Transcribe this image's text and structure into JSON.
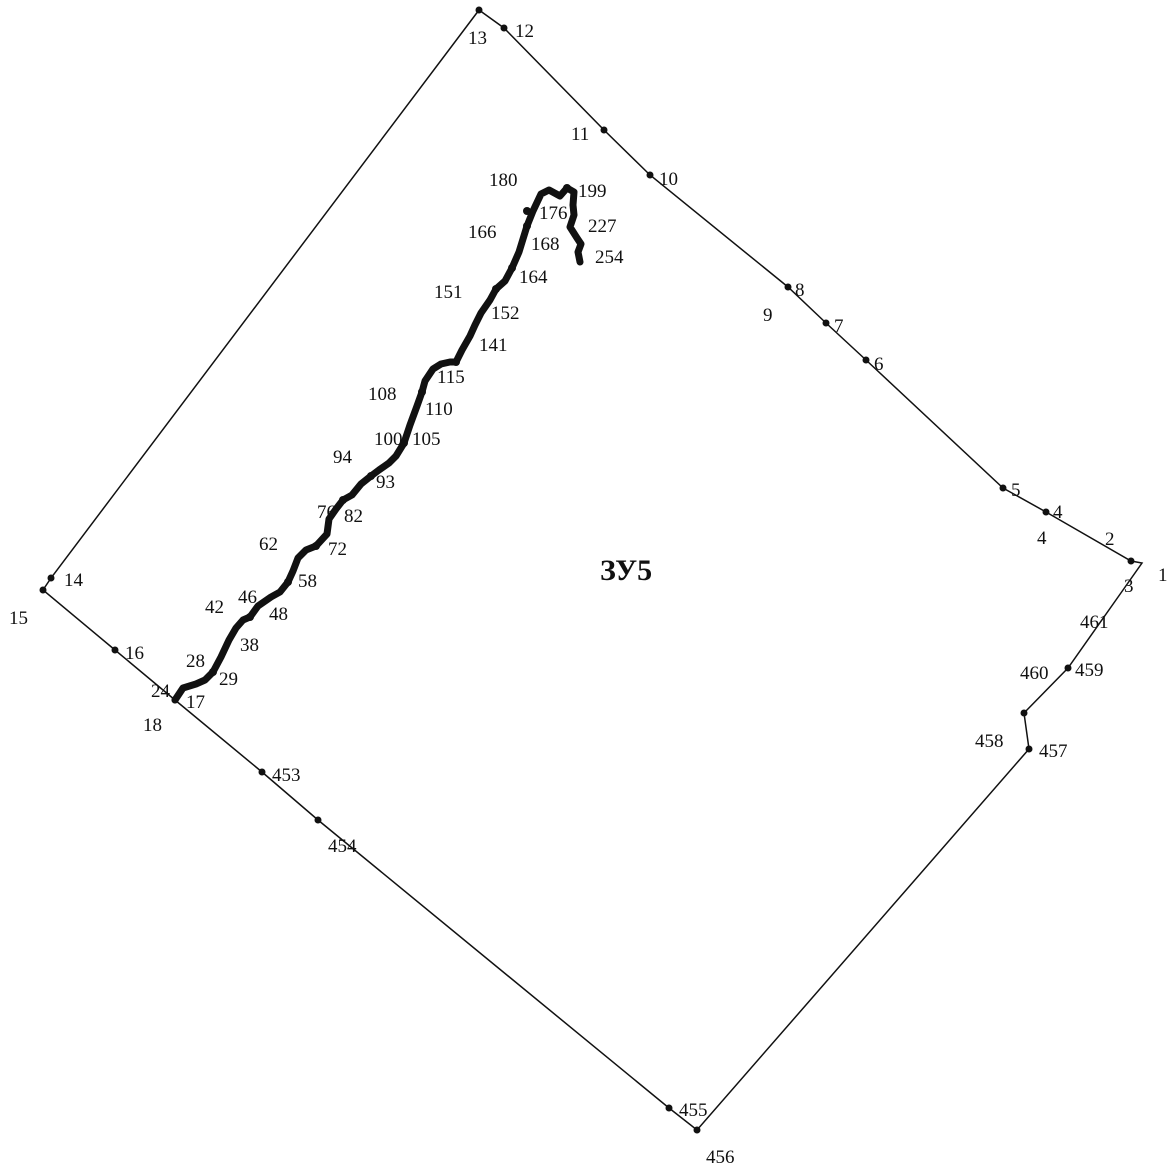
{
  "parcel": {
    "label": "ЗУ5"
  },
  "boundary_points": [
    "1",
    "2",
    "3",
    "4",
    "4",
    "5",
    "6",
    "7",
    "8",
    "9",
    "10",
    "11",
    "12",
    "13",
    "14",
    "15",
    "16",
    "17",
    "18",
    "453",
    "454",
    "455",
    "456",
    "457",
    "458",
    "459",
    "460",
    "461"
  ],
  "inner_line_points": [
    "24",
    "28",
    "29",
    "38",
    "42",
    "46",
    "48",
    "58",
    "62",
    "72",
    "76",
    "82",
    "93",
    "94",
    "100",
    "105",
    "108",
    "110",
    "115",
    "141",
    "151",
    "152",
    "164",
    "166",
    "168",
    "176",
    "180",
    "199",
    "227",
    "254"
  ],
  "colors": {
    "ink": "#111111",
    "background": "#ffffff"
  }
}
